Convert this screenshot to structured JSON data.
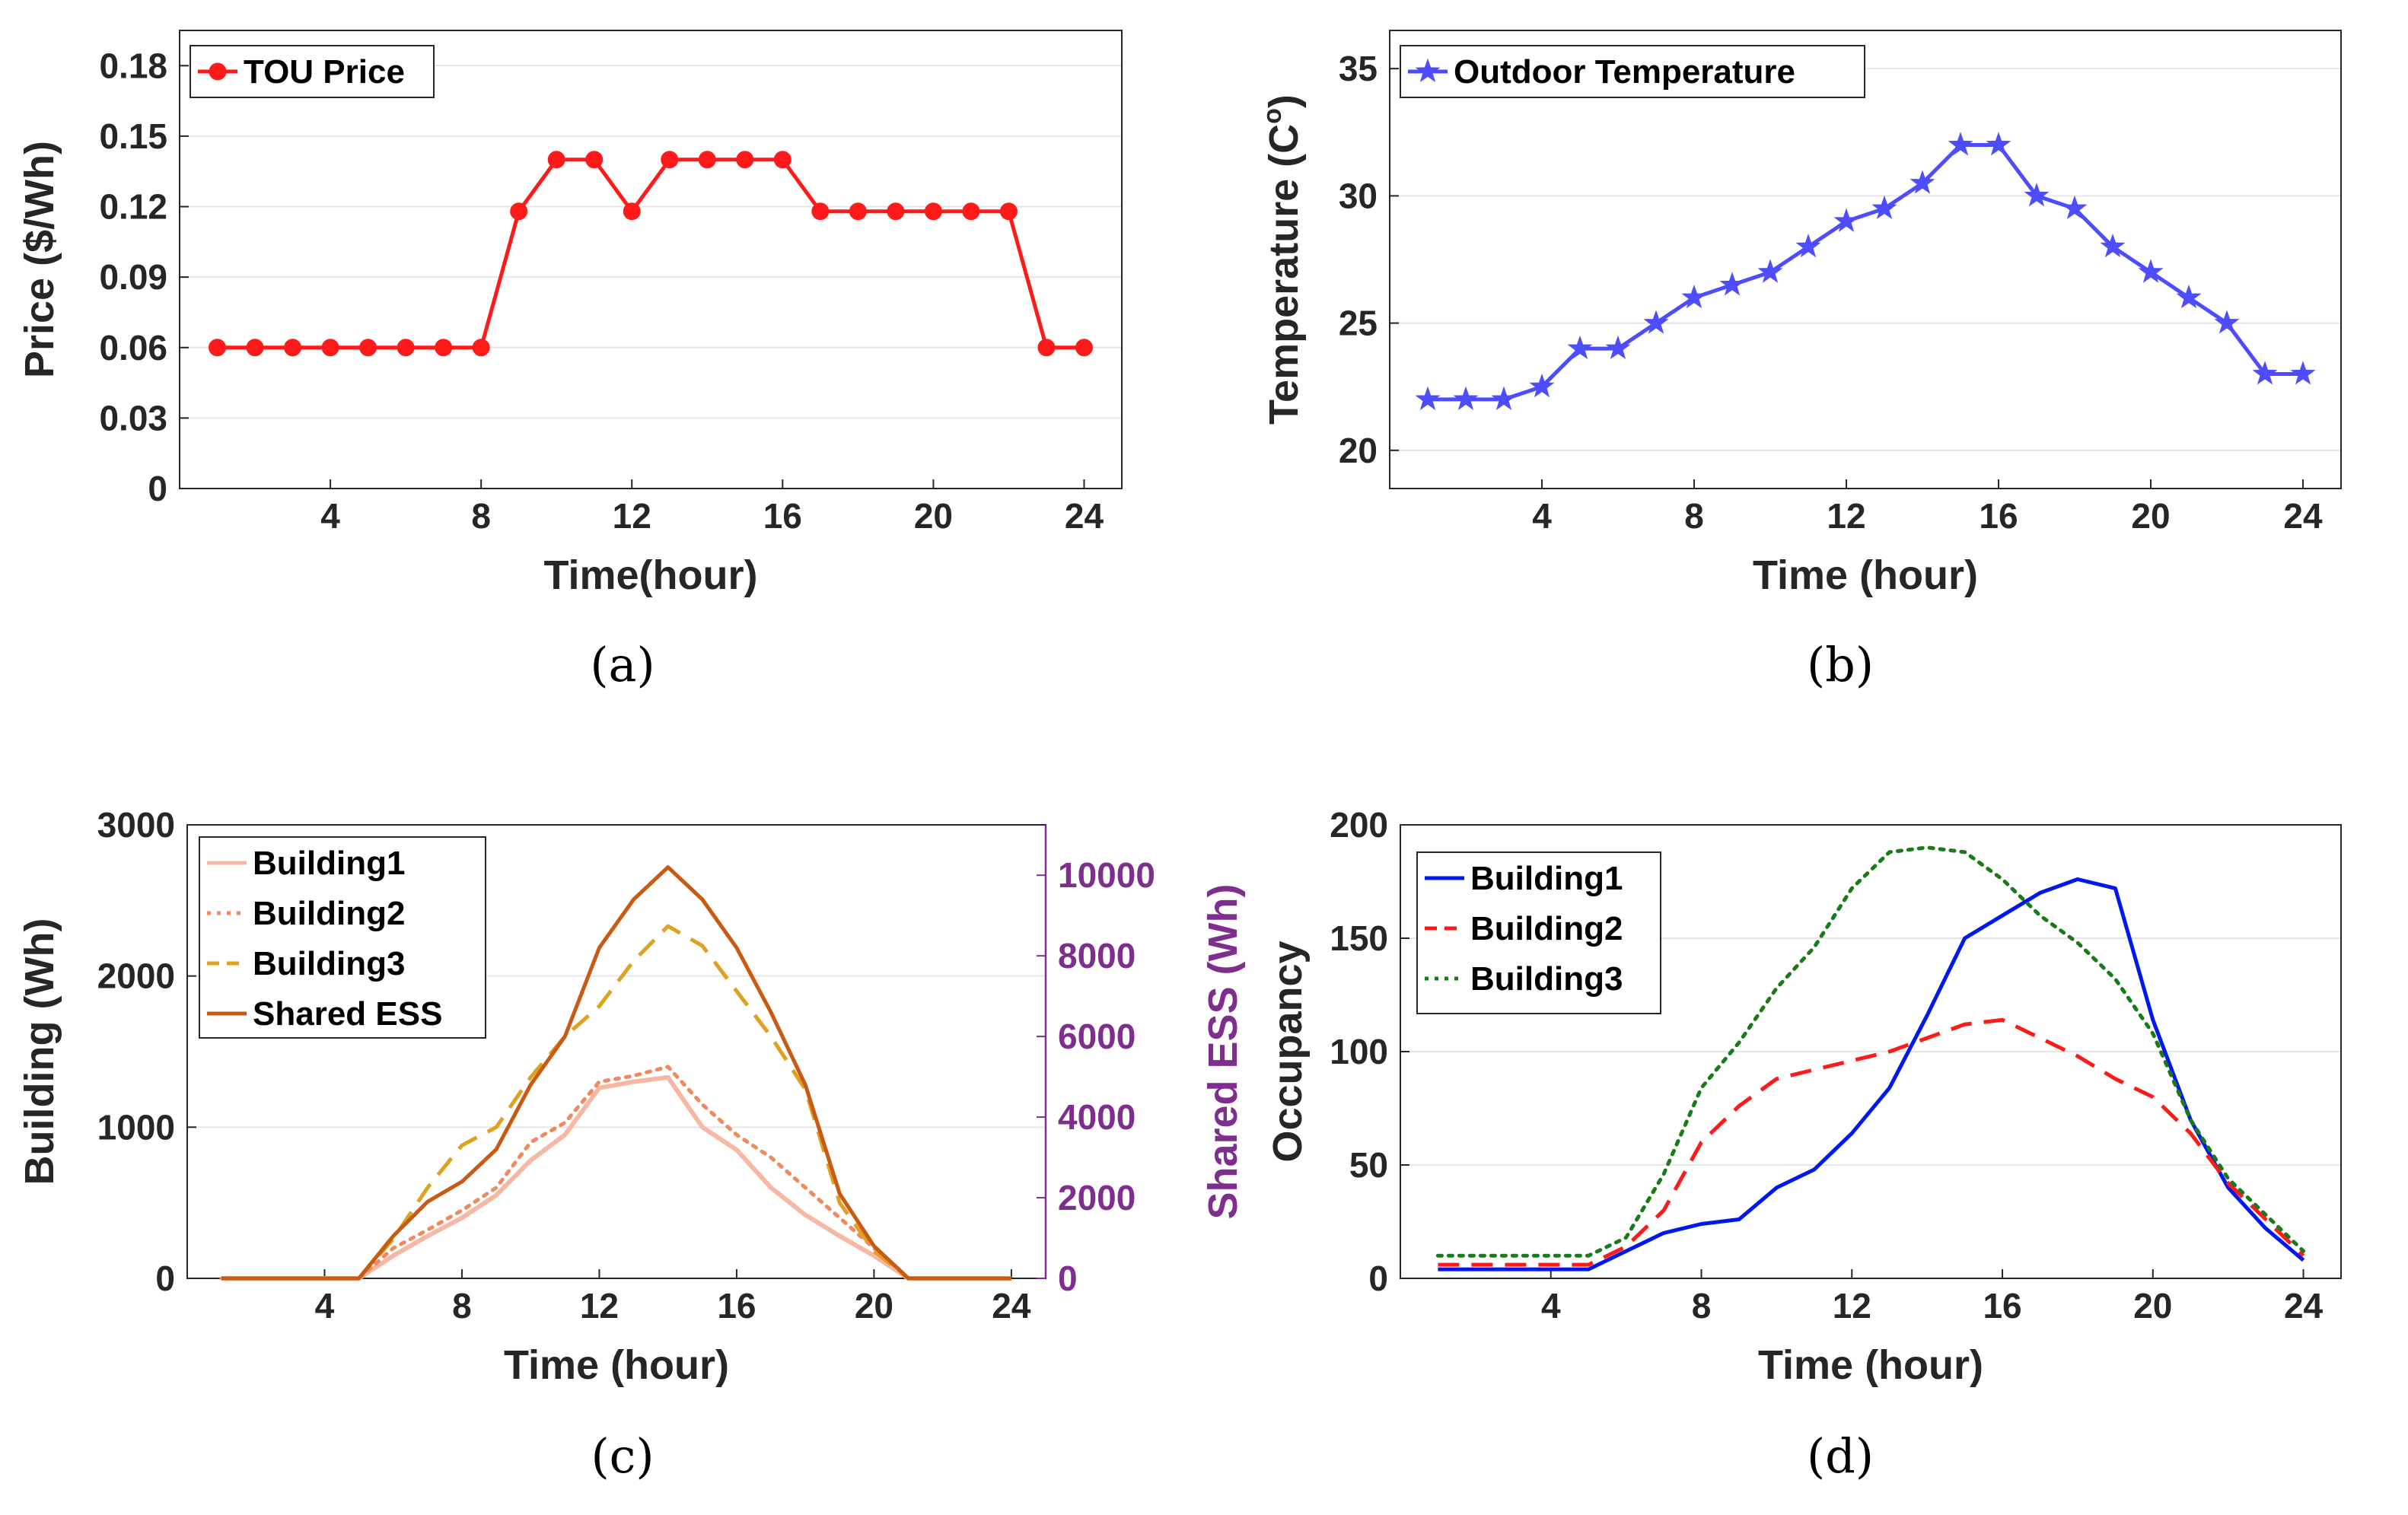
{
  "colors": {
    "tou": "#ff1a1a",
    "temp": "#4d4dff",
    "c_b1": "#f6b8a4",
    "c_b2": "#ef8a5e",
    "c_b3": "#e0a020",
    "c_ess": "#c85a14",
    "c_right_axis": "#7e2f8e",
    "d_b1": "#0018f0",
    "d_b2": "#ff1a1a",
    "d_b3": "#1a7a1a"
  },
  "chart_data": [
    {
      "id": "a",
      "type": "line",
      "caption": "(a)",
      "xlabel": "Time(hour)",
      "ylabel": "Price ($/Wh)",
      "xlim": [
        0,
        25
      ],
      "ylim": [
        0,
        0.195
      ],
      "xticks": [
        4,
        8,
        12,
        16,
        20,
        24
      ],
      "xtick_labels": [
        "4",
        "8",
        "12",
        "16",
        "20",
        "24"
      ],
      "yticks": [
        0,
        0.03,
        0.06,
        0.09,
        0.12,
        0.15,
        0.18
      ],
      "ytick_labels": [
        "0",
        "0.03",
        "0.06",
        "0.09",
        "0.12",
        "0.15",
        "0.18"
      ],
      "legend": "top-left",
      "series": [
        {
          "name": "TOU Price",
          "color_key": "tou",
          "marker": "dot",
          "x": [
            1,
            2,
            3,
            4,
            5,
            6,
            7,
            8,
            9,
            10,
            11,
            12,
            13,
            14,
            15,
            16,
            17,
            18,
            19,
            20,
            21,
            22,
            23,
            24
          ],
          "values": [
            0.06,
            0.06,
            0.06,
            0.06,
            0.06,
            0.06,
            0.06,
            0.06,
            0.118,
            0.14,
            0.14,
            0.118,
            0.14,
            0.14,
            0.14,
            0.14,
            0.118,
            0.118,
            0.118,
            0.118,
            0.118,
            0.118,
            0.06,
            0.06
          ]
        }
      ]
    },
    {
      "id": "b",
      "type": "line",
      "caption": "(b)",
      "xlabel": "Time (hour)",
      "ylabel": "Temperature (C",
      "ylabel_sup": "o",
      "ylabel_end": ")",
      "xlim": [
        0,
        25
      ],
      "ylim": [
        18.5,
        36.5
      ],
      "xticks": [
        4,
        8,
        12,
        16,
        20,
        24
      ],
      "xtick_labels": [
        "4",
        "8",
        "12",
        "16",
        "20",
        "24"
      ],
      "yticks": [
        20,
        25,
        30,
        35
      ],
      "ytick_labels": [
        "20",
        "25",
        "30",
        "35"
      ],
      "legend": "top-left",
      "series": [
        {
          "name": "Outdoor Temperature",
          "color_key": "temp",
          "marker": "star",
          "x": [
            1,
            2,
            3,
            4,
            5,
            6,
            7,
            8,
            9,
            10,
            11,
            12,
            13,
            14,
            15,
            16,
            17,
            18,
            19,
            20,
            21,
            22,
            23,
            24
          ],
          "values": [
            22,
            22,
            22,
            22.5,
            24,
            24,
            25,
            26,
            26.5,
            27,
            28,
            29,
            29.5,
            30.5,
            32,
            32,
            30,
            29.5,
            28,
            27,
            26,
            25,
            23,
            23
          ]
        }
      ]
    },
    {
      "id": "c",
      "type": "line",
      "caption": "(c)",
      "xlabel": "Time (hour)",
      "ylabel": "Building (Wh)",
      "ylabel_right": "Shared ESS (Wh)",
      "xlim": [
        0,
        25
      ],
      "ylim": [
        0,
        3000
      ],
      "ylim_right": [
        0,
        11250
      ],
      "xticks": [
        4,
        8,
        12,
        16,
        20,
        24
      ],
      "xtick_labels": [
        "4",
        "8",
        "12",
        "16",
        "20",
        "24"
      ],
      "yticks": [
        0,
        1000,
        2000,
        3000
      ],
      "ytick_labels": [
        "0",
        "1000",
        "2000",
        "3000"
      ],
      "yticks_right": [
        0,
        2000,
        4000,
        6000,
        8000,
        10000
      ],
      "ytick_labels_right": [
        "0",
        "2000",
        "4000",
        "6000",
        "8000",
        "10000"
      ],
      "legend": "top-left",
      "series": [
        {
          "name": "Building1",
          "color_key": "c_b1",
          "style": "solid",
          "axis": "left",
          "x": [
            1,
            2,
            3,
            4,
            5,
            6,
            7,
            8,
            9,
            10,
            11,
            12,
            13,
            14,
            15,
            16,
            17,
            18,
            19,
            20,
            21,
            22,
            23,
            24
          ],
          "values": [
            0,
            0,
            0,
            0,
            0,
            150,
            280,
            400,
            550,
            780,
            950,
            1260,
            1300,
            1330,
            1000,
            850,
            600,
            420,
            280,
            150,
            0,
            0,
            0,
            0
          ]
        },
        {
          "name": "Building2",
          "color_key": "c_b2",
          "style": "dotted",
          "axis": "left",
          "x": [
            1,
            2,
            3,
            4,
            5,
            6,
            7,
            8,
            9,
            10,
            11,
            12,
            13,
            14,
            15,
            16,
            17,
            18,
            19,
            20,
            21,
            22,
            23,
            24
          ],
          "values": [
            0,
            0,
            0,
            0,
            0,
            200,
            320,
            450,
            600,
            900,
            1030,
            1300,
            1340,
            1400,
            1150,
            950,
            800,
            600,
            400,
            200,
            0,
            0,
            0,
            0
          ]
        },
        {
          "name": "Building3",
          "color_key": "c_b3",
          "style": "dashed",
          "axis": "left",
          "x": [
            1,
            2,
            3,
            4,
            5,
            6,
            7,
            8,
            9,
            10,
            11,
            12,
            13,
            14,
            15,
            16,
            17,
            18,
            19,
            20,
            21,
            22,
            23,
            24
          ],
          "values": [
            0,
            0,
            0,
            0,
            0,
            260,
            600,
            880,
            1000,
            1330,
            1600,
            1800,
            2100,
            2330,
            2200,
            1900,
            1600,
            1250,
            500,
            180,
            0,
            0,
            0,
            0
          ]
        },
        {
          "name": "Shared ESS",
          "color_key": "c_ess",
          "style": "solid",
          "axis": "right",
          "x": [
            1,
            2,
            3,
            4,
            5,
            6,
            7,
            8,
            9,
            10,
            11,
            12,
            13,
            14,
            15,
            16,
            17,
            18,
            19,
            20,
            21,
            22,
            23,
            24
          ],
          "values": [
            0,
            0,
            0,
            0,
            0,
            1050,
            1900,
            2400,
            3200,
            4800,
            6000,
            8200,
            9400,
            10200,
            9400,
            8200,
            6600,
            4800,
            2100,
            800,
            0,
            0,
            0,
            0
          ]
        }
      ]
    },
    {
      "id": "d",
      "type": "line",
      "caption": "(d)",
      "xlabel": "Time (hour)",
      "ylabel": "Occupancy",
      "xlim": [
        0,
        25
      ],
      "ylim": [
        0,
        200
      ],
      "xticks": [
        4,
        8,
        12,
        16,
        20,
        24
      ],
      "xtick_labels": [
        "4",
        "8",
        "12",
        "16",
        "20",
        "24"
      ],
      "yticks": [
        0,
        50,
        100,
        150,
        200
      ],
      "ytick_labels": [
        "0",
        "50",
        "100",
        "150",
        "200"
      ],
      "legend": "top-left",
      "series": [
        {
          "name": "Building1",
          "color_key": "d_b1",
          "style": "solid",
          "x": [
            1,
            2,
            3,
            4,
            5,
            6,
            7,
            8,
            9,
            10,
            11,
            12,
            13,
            14,
            15,
            16,
            17,
            18,
            19,
            20,
            21,
            22,
            23,
            24
          ],
          "values": [
            4,
            4,
            4,
            4,
            4,
            12,
            20,
            24,
            26,
            40,
            48,
            64,
            84,
            116,
            150,
            160,
            170,
            176,
            172,
            114,
            70,
            40,
            22,
            8
          ]
        },
        {
          "name": "Building2",
          "color_key": "d_b2",
          "style": "dashed",
          "x": [
            1,
            2,
            3,
            4,
            5,
            6,
            7,
            8,
            9,
            10,
            11,
            12,
            13,
            14,
            15,
            16,
            17,
            18,
            19,
            20,
            21,
            22,
            23,
            24
          ],
          "values": [
            6,
            6,
            6,
            6,
            6,
            14,
            30,
            60,
            76,
            88,
            92,
            96,
            100,
            106,
            112,
            114,
            106,
            98,
            88,
            80,
            64,
            42,
            26,
            10
          ]
        },
        {
          "name": "Building3",
          "color_key": "d_b3",
          "style": "dotted",
          "x": [
            1,
            2,
            3,
            4,
            5,
            6,
            7,
            8,
            9,
            10,
            11,
            12,
            13,
            14,
            15,
            16,
            17,
            18,
            19,
            20,
            21,
            22,
            23,
            24
          ],
          "values": [
            10,
            10,
            10,
            10,
            10,
            18,
            46,
            84,
            104,
            128,
            146,
            172,
            188,
            190,
            188,
            176,
            160,
            148,
            132,
            108,
            70,
            44,
            28,
            12
          ]
        }
      ]
    }
  ]
}
